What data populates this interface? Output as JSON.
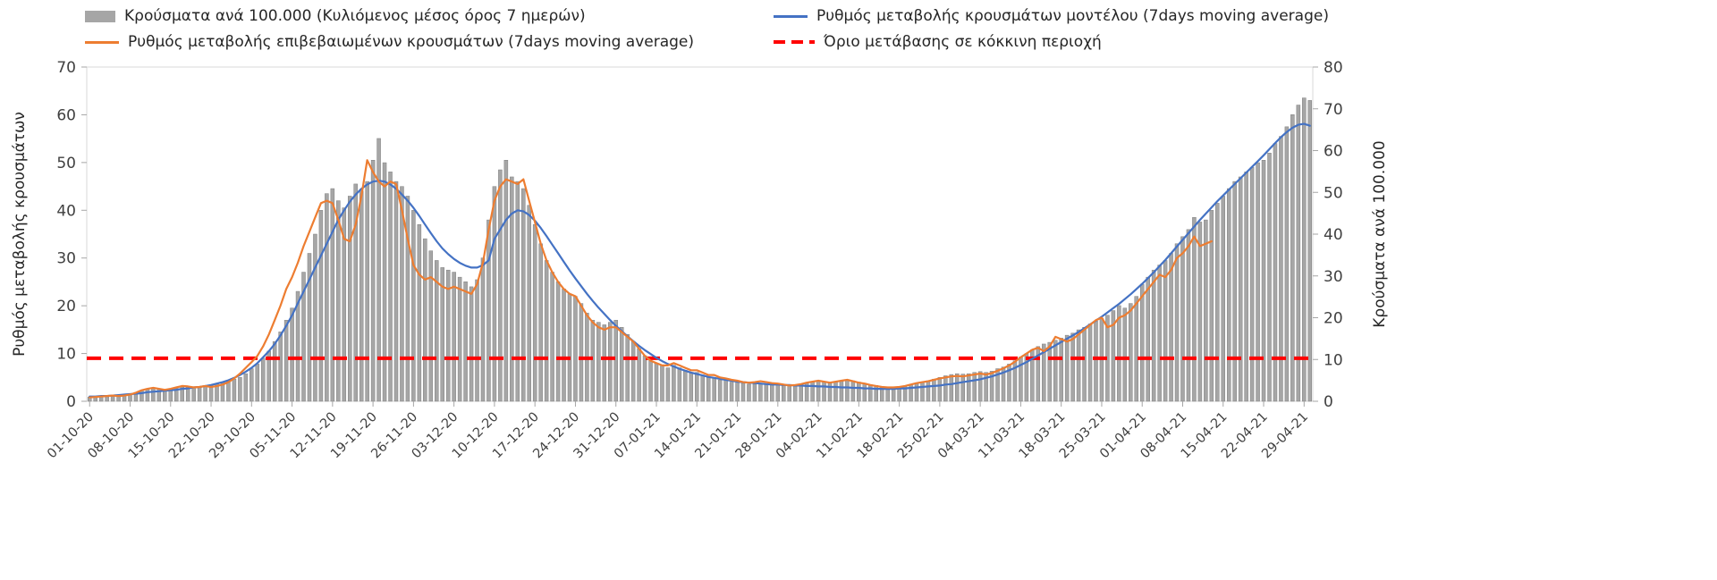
{
  "legend": {
    "bars_label": "Κρούσματα ανά 100.000 (Κυλιόμενος μέσος όρος 7 ημερών)",
    "model_label": "Ρυθμός μεταβολής κρουσμάτων μοντέλου (7days moving average)",
    "confirmed_label": "Ρυθμός μεταβολής επιβεβαιωμένων κρουσμάτων (7days moving average)",
    "threshold_label": "Όριο μετάβασης σε κόκκινη περιοχή"
  },
  "colors": {
    "bar": "#a6a6a6",
    "bar_border": "#7f7f7f",
    "model_line": "#4472c4",
    "confirmed_line": "#ed7d31",
    "threshold": "#ff0000",
    "axis": "#a6a6a6",
    "frame": "#d9d9d9"
  },
  "chart_data": {
    "type": "bar",
    "subtype": "combo-bar-and-lines",
    "left_axis_title": "Ρυθμός μεταβολής κρουσμάτων",
    "right_axis_title": "Κρούσματα ανά 100.000",
    "left_range": [
      0,
      70
    ],
    "right_range": [
      0,
      80
    ],
    "left_ticks": [
      0,
      10,
      20,
      30,
      40,
      50,
      60,
      70
    ],
    "right_ticks": [
      0,
      10,
      20,
      30,
      40,
      50,
      60,
      70,
      80
    ],
    "grid": false,
    "legend_position": "top",
    "threshold_value": 9,
    "x_tick_labels": [
      "01-10-20",
      "08-10-20",
      "15-10-20",
      "22-10-20",
      "29-10-20",
      "05-11-20",
      "12-11-20",
      "19-11-20",
      "26-11-20",
      "03-12-20",
      "10-12-20",
      "17-12-20",
      "24-12-20",
      "31-12-20",
      "07-01-21",
      "14-01-21",
      "21-01-21",
      "28-01-21",
      "04-02-21",
      "11-02-21",
      "18-02-21",
      "25-02-21",
      "04-03-21",
      "11-03-21",
      "18-03-21",
      "25-03-21",
      "01-04-21",
      "08-04-21",
      "15-04-21",
      "22-04-21",
      "29-04-21"
    ],
    "x_tick_every_days": 7,
    "series": [
      {
        "name": "Κρούσματα ανά 100.000 (Κυλιόμενος μέσος όρος 7 ημερών)",
        "type": "bar",
        "axis": "right",
        "values": [
          1.0,
          1.1,
          1.1,
          1.3,
          1.3,
          1.4,
          1.5,
          1.7,
          2.1,
          2.5,
          2.9,
          3.0,
          2.9,
          2.7,
          2.9,
          3.1,
          3.4,
          3.5,
          3.4,
          3.5,
          3.7,
          3.9,
          4.2,
          4.6,
          4.9,
          5.3,
          5.7,
          6.6,
          7.8,
          8.9,
          10.3,
          12.0,
          14.3,
          16.6,
          19.4,
          22.3,
          26.3,
          30.9,
          35.4,
          40.0,
          45.7,
          49.7,
          50.9,
          48.0,
          46.3,
          49.1,
          52.0,
          50.3,
          52.6,
          57.7,
          62.9,
          57.1,
          54.9,
          52.6,
          51.4,
          49.1,
          45.7,
          42.3,
          38.9,
          36.0,
          33.7,
          32.0,
          31.4,
          30.9,
          29.7,
          28.6,
          27.4,
          29.1,
          34.3,
          43.4,
          51.4,
          55.4,
          57.7,
          53.7,
          52.6,
          50.9,
          46.9,
          42.3,
          37.7,
          33.7,
          30.9,
          28.6,
          26.9,
          25.7,
          25.1,
          23.4,
          21.1,
          19.4,
          18.9,
          18.3,
          18.9,
          19.4,
          17.7,
          16.0,
          14.3,
          12.6,
          10.9,
          9.7,
          9.1,
          8.6,
          8.0,
          8.6,
          8.0,
          7.4,
          6.9,
          6.9,
          6.3,
          5.7,
          5.7,
          5.1,
          5.1,
          4.6,
          4.6,
          4.3,
          4.1,
          4.1,
          4.3,
          4.2,
          4.1,
          4.0,
          3.9,
          3.8,
          3.8,
          4.0,
          4.3,
          4.6,
          4.8,
          4.6,
          4.3,
          4.6,
          4.8,
          5.1,
          4.9,
          4.6,
          4.3,
          4.0,
          3.8,
          3.5,
          3.4,
          3.4,
          3.4,
          3.7,
          4.0,
          4.3,
          4.6,
          4.9,
          5.3,
          5.7,
          6.1,
          6.4,
          6.6,
          6.5,
          6.6,
          6.9,
          7.1,
          6.9,
          7.2,
          7.8,
          8.2,
          8.9,
          9.7,
          10.6,
          11.4,
          12.3,
          13.1,
          13.7,
          14.1,
          14.6,
          15.1,
          15.8,
          16.3,
          17.1,
          17.7,
          18.5,
          19.2,
          19.8,
          20.6,
          21.7,
          22.9,
          22.3,
          23.4,
          25.1,
          28.0,
          29.7,
          31.4,
          32.6,
          33.7,
          35.4,
          37.7,
          39.4,
          41.1,
          44.0,
          42.9,
          43.4,
          45.7,
          47.4,
          49.1,
          50.9,
          52.6,
          53.7,
          54.9,
          56.0,
          57.1,
          57.7,
          59.4,
          61.7,
          63.4,
          65.7,
          68.6,
          70.9,
          72.6,
          72.0
        ]
      },
      {
        "name": "Ρυθμός μεταβολής κρουσμάτων μοντέλου (7days moving average)",
        "type": "line",
        "axis": "left",
        "values": [
          1.0,
          1.0,
          1.1,
          1.1,
          1.2,
          1.3,
          1.4,
          1.5,
          1.6,
          1.7,
          1.9,
          2.0,
          2.1,
          2.2,
          2.3,
          2.4,
          2.6,
          2.7,
          2.9,
          3.0,
          3.2,
          3.4,
          3.7,
          4.0,
          4.4,
          4.9,
          5.5,
          6.2,
          7.0,
          8.0,
          9.2,
          10.5,
          12.0,
          13.8,
          15.8,
          18.0,
          20.5,
          23.0,
          25.5,
          28.0,
          30.5,
          33.0,
          35.5,
          38.0,
          40.0,
          41.8,
          43.3,
          44.5,
          45.4,
          46.0,
          46.2,
          46.0,
          45.4,
          44.5,
          43.3,
          42.0,
          40.5,
          38.8,
          37.0,
          35.2,
          33.5,
          32.0,
          30.8,
          29.8,
          29.0,
          28.4,
          28.0,
          28.0,
          28.5,
          29.5,
          34.0,
          36.0,
          38.0,
          39.3,
          40.0,
          39.8,
          39.0,
          37.8,
          36.3,
          34.6,
          32.8,
          31.0,
          29.2,
          27.4,
          25.7,
          24.1,
          22.5,
          21.0,
          19.6,
          18.3,
          17.0,
          15.8,
          14.7,
          13.6,
          12.6,
          11.6,
          10.7,
          9.9,
          9.1,
          8.4,
          7.8,
          7.3,
          6.8,
          6.4,
          6.0,
          5.7,
          5.4,
          5.1,
          4.9,
          4.7,
          4.5,
          4.3,
          4.1,
          4.0,
          3.9,
          3.8,
          3.7,
          3.6,
          3.5,
          3.5,
          3.4,
          3.4,
          3.3,
          3.3,
          3.2,
          3.2,
          3.1,
          3.1,
          3.0,
          3.0,
          2.9,
          2.9,
          2.8,
          2.8,
          2.7,
          2.7,
          2.6,
          2.6,
          2.6,
          2.6,
          2.7,
          2.7,
          2.8,
          2.9,
          3.0,
          3.1,
          3.2,
          3.3,
          3.5,
          3.6,
          3.8,
          4.0,
          4.2,
          4.4,
          4.6,
          4.9,
          5.2,
          5.6,
          6.0,
          6.5,
          7.0,
          7.6,
          8.2,
          8.9,
          9.6,
          10.3,
          11.0,
          11.7,
          12.4,
          13.1,
          13.8,
          14.5,
          15.3,
          16.1,
          16.9,
          17.7,
          18.6,
          19.5,
          20.4,
          21.4,
          22.4,
          23.5,
          24.6,
          25.8,
          27.0,
          28.3,
          29.6,
          31.0,
          32.4,
          33.8,
          35.2,
          36.6,
          38.0,
          39.3,
          40.6,
          41.9,
          43.1,
          44.3,
          45.5,
          46.7,
          47.9,
          49.1,
          50.3,
          51.5,
          52.8,
          54.1,
          55.3,
          56.4,
          57.3,
          57.9,
          58.1,
          57.7
        ]
      },
      {
        "name": "Ρυθμός μεταβολής επιβεβαιωμένων κρουσμάτων (7days moving average)",
        "type": "line",
        "axis": "left",
        "values": [
          0.8,
          0.9,
          1.0,
          1.1,
          1.2,
          1.1,
          1.2,
          1.4,
          1.8,
          2.3,
          2.6,
          2.8,
          2.6,
          2.4,
          2.6,
          2.9,
          3.2,
          3.1,
          2.9,
          3.0,
          3.2,
          3.0,
          3.2,
          3.5,
          4.0,
          4.8,
          5.8,
          7.0,
          8.2,
          9.5,
          11.5,
          14.0,
          17.0,
          20.0,
          23.5,
          26.0,
          29.0,
          32.5,
          35.5,
          38.5,
          41.5,
          42.0,
          41.5,
          38.0,
          34.0,
          33.5,
          37.0,
          43.0,
          50.5,
          48.0,
          46.0,
          45.0,
          46.0,
          45.5,
          40.0,
          34.0,
          28.5,
          26.5,
          25.5,
          26.0,
          25.0,
          24.0,
          23.5,
          24.0,
          23.5,
          23.0,
          22.5,
          24.5,
          29.0,
          36.0,
          42.0,
          45.0,
          46.5,
          46.0,
          45.5,
          46.5,
          42.0,
          37.5,
          33.0,
          29.5,
          27.0,
          25.0,
          23.5,
          22.5,
          22.0,
          20.0,
          18.0,
          16.5,
          15.5,
          15.0,
          15.5,
          15.5,
          14.5,
          13.5,
          12.5,
          11.0,
          9.5,
          8.5,
          8.0,
          7.5,
          7.5,
          8.0,
          7.5,
          7.0,
          6.5,
          6.5,
          6.0,
          5.5,
          5.5,
          5.0,
          4.8,
          4.5,
          4.3,
          4.0,
          3.9,
          4.0,
          4.2,
          4.0,
          3.8,
          3.7,
          3.5,
          3.3,
          3.4,
          3.6,
          3.9,
          4.1,
          4.3,
          4.1,
          3.9,
          4.1,
          4.3,
          4.5,
          4.2,
          3.9,
          3.7,
          3.4,
          3.2,
          3.0,
          2.9,
          2.9,
          3.0,
          3.2,
          3.5,
          3.8,
          4.0,
          4.2,
          4.5,
          4.8,
          5.0,
          5.2,
          5.3,
          5.2,
          5.4,
          5.6,
          5.8,
          5.6,
          5.9,
          6.4,
          6.9,
          7.5,
          8.3,
          9.2,
          10.0,
          10.8,
          11.2,
          10.5,
          11.5,
          13.5,
          13.0,
          12.5,
          13.0,
          14.0,
          15.0,
          16.0,
          17.0,
          17.5,
          15.5,
          16.0,
          17.5,
          18.0,
          19.0,
          20.5,
          22.0,
          23.5,
          25.0,
          26.5,
          26.0,
          27.5,
          30.0,
          31.0,
          32.5,
          34.5,
          32.5,
          33.0,
          33.5,
          null,
          null,
          null,
          null,
          null,
          null,
          null,
          null,
          null,
          null,
          null,
          null,
          null,
          null,
          null,
          null,
          null
        ]
      }
    ]
  }
}
